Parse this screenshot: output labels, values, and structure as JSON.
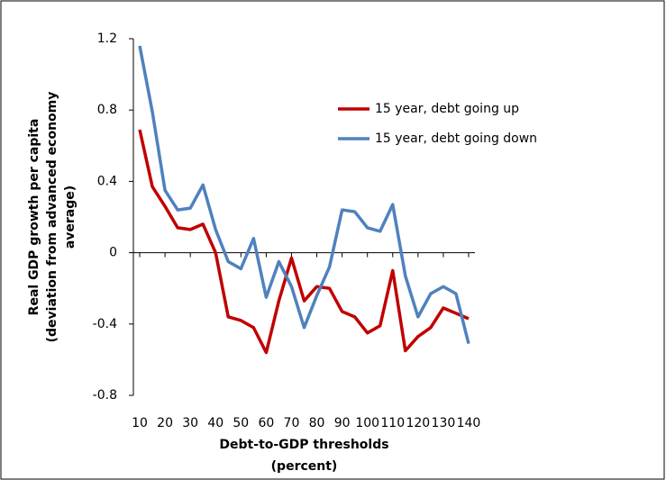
{
  "chart_data": {
    "type": "line",
    "xlabel": [
      "Debt-to-GDP thresholds",
      "(percent)"
    ],
    "ylabel": [
      "Real GDP growth per capita",
      "(deviation from advanced  economy",
      "average)"
    ],
    "x": [
      10,
      15,
      20,
      25,
      30,
      35,
      40,
      45,
      50,
      55,
      60,
      65,
      70,
      75,
      80,
      85,
      90,
      95,
      100,
      105,
      110,
      115,
      120,
      125,
      130,
      135,
      140
    ],
    "series": [
      {
        "name": "15 year, debt going up",
        "color": "#c00000",
        "values": [
          0.69,
          0.37,
          0.26,
          0.14,
          0.13,
          0.16,
          0.0,
          -0.36,
          -0.38,
          -0.42,
          -0.56,
          -0.27,
          -0.03,
          -0.27,
          -0.19,
          -0.2,
          -0.33,
          -0.36,
          -0.45,
          -0.41,
          -0.1,
          -0.55,
          -0.47,
          -0.42,
          -0.31,
          -0.34,
          -0.37
        ]
      },
      {
        "name": "15 year, debt going down",
        "color": "#4f81bd",
        "values": [
          1.16,
          0.79,
          0.35,
          0.24,
          0.25,
          0.38,
          0.13,
          -0.05,
          -0.09,
          0.08,
          -0.25,
          -0.05,
          -0.19,
          -0.42,
          -0.24,
          -0.08,
          0.24,
          0.23,
          0.14,
          0.12,
          0.27,
          -0.13,
          -0.36,
          -0.23,
          -0.19,
          -0.23,
          -0.51
        ]
      }
    ],
    "xlim": [
      7.5,
      142.5
    ],
    "xticks": [
      10,
      20,
      30,
      40,
      50,
      60,
      70,
      80,
      90,
      100,
      110,
      120,
      130,
      140
    ],
    "ylim": [
      -0.8,
      1.2
    ],
    "yticks": [
      -0.8,
      -0.4,
      0,
      0.4,
      0.8,
      1.2
    ],
    "legend": "upper right"
  }
}
